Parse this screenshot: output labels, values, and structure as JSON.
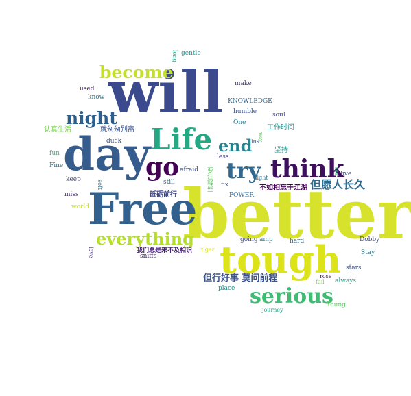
{
  "words": [
    {
      "text": "will",
      "color": "#3b4a8c"
    },
    {
      "text": "better",
      "color": "#d6e22b"
    },
    {
      "text": "Free",
      "color": "#32618d"
    },
    {
      "text": "day",
      "color": "#355c8d"
    },
    {
      "text": "tough",
      "color": "#dce319"
    },
    {
      "text": "Life",
      "color": "#23a884"
    },
    {
      "text": "think",
      "color": "#3e0f5d"
    },
    {
      "text": "serious",
      "color": "#3fbc73"
    },
    {
      "text": "go",
      "color": "#440154"
    },
    {
      "text": "become",
      "color": "#c5df2e"
    },
    {
      "text": "everything",
      "color": "#b5de2b"
    },
    {
      "text": "night",
      "color": "#2c5f8b"
    },
    {
      "text": "end",
      "color": "#25848e"
    },
    {
      "text": "try",
      "color": "#31688e"
    },
    {
      "text": "但愿人长久",
      "color": "#2f6b8e"
    },
    {
      "text": "但行好事 莫问前程",
      "color": "#3b528b"
    },
    {
      "text": "不如相忘于江湖",
      "color": "#440154"
    },
    {
      "text": "砥砺前行",
      "color": "#404788"
    },
    {
      "text": "我们总是来不及相识",
      "color": "#482475"
    },
    {
      "text": "工作时间",
      "color": "#21918c"
    },
    {
      "text": "认真生活",
      "color": "#7ad151"
    },
    {
      "text": "就匆匆别离",
      "color": "#3b528b"
    },
    {
      "text": "坚持",
      "color": "#1f988b"
    },
    {
      "text": "要注释些",
      "color": "#5ec962"
    },
    {
      "text": "KNOWLEDGE",
      "color": "#31688e"
    },
    {
      "text": "humble",
      "color": "#3b528b"
    },
    {
      "text": "One",
      "color": "#2a788e"
    },
    {
      "text": "soul",
      "color": "#414487"
    },
    {
      "text": "make",
      "color": "#443983"
    },
    {
      "text": "used",
      "color": "#482878"
    },
    {
      "text": "know",
      "color": "#2a788e"
    },
    {
      "text": "long",
      "color": "#22a884"
    },
    {
      "text": "gentle",
      "color": "#21918c"
    },
    {
      "text": "duck",
      "color": "#3b528b"
    },
    {
      "text": "fun",
      "color": "#35b779"
    },
    {
      "text": "Fine",
      "color": "#2c728e"
    },
    {
      "text": "keep",
      "color": "#414487"
    },
    {
      "text": "miss",
      "color": "#472d7b"
    },
    {
      "text": "world",
      "color": "#bddf26"
    },
    {
      "text": "soft",
      "color": "#2a788e"
    },
    {
      "text": "afraid",
      "color": "#3b528b"
    },
    {
      "text": "still",
      "color": "#2c728e"
    },
    {
      "text": "less",
      "color": "#433e85"
    },
    {
      "text": "light",
      "color": "#2c728e"
    },
    {
      "text": "ins",
      "color": "#3b528b"
    },
    {
      "text": "way",
      "color": "#5ec962"
    },
    {
      "text": "fix",
      "color": "#3b528b"
    },
    {
      "text": "POWER",
      "color": "#31688e"
    },
    {
      "text": "live",
      "color": "#3b528b"
    },
    {
      "text": "see",
      "color": "#35b779"
    },
    {
      "text": "going",
      "color": "#3e4989"
    },
    {
      "text": "amp",
      "color": "#2a788e"
    },
    {
      "text": "hard",
      "color": "#31688e"
    },
    {
      "text": "Dobby",
      "color": "#3e4989"
    },
    {
      "text": "Stay",
      "color": "#2a788e"
    },
    {
      "text": "love",
      "color": "#472d7b"
    },
    {
      "text": "sniffs",
      "color": "#482475"
    },
    {
      "text": "tiger",
      "color": "#d0e11c"
    },
    {
      "text": "rose",
      "color": "#440154"
    },
    {
      "text": "fail",
      "color": "#7ad151"
    },
    {
      "text": "always",
      "color": "#20a486"
    },
    {
      "text": "stars",
      "color": "#3b528b"
    },
    {
      "text": "place",
      "color": "#21918c"
    },
    {
      "text": "Young",
      "color": "#5ec962"
    },
    {
      "text": "journey",
      "color": "#20a486"
    }
  ]
}
